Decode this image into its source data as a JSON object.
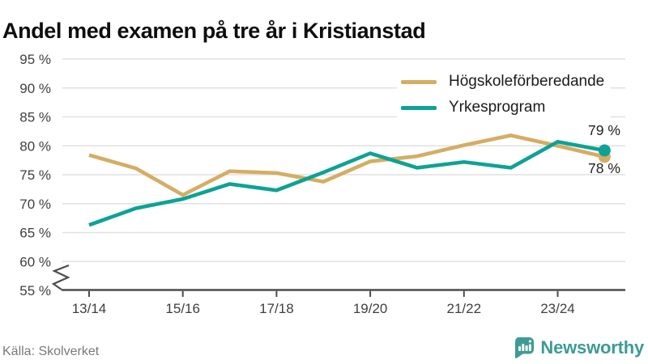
{
  "title": "Andel med examen på tre år i Kristianstad",
  "source": {
    "text": "Källa: Skolverket"
  },
  "branding": {
    "name": "Newsworthy",
    "color": "#3d9b94"
  },
  "chart_data": {
    "type": "line",
    "title": "Andel med examen på tre år i Kristianstad",
    "categories": [
      "13/14",
      "14/15",
      "15/16",
      "16/17",
      "17/18",
      "18/19",
      "19/20",
      "20/21",
      "21/22",
      "22/23",
      "23/24",
      "24/25"
    ],
    "x_tick_labels": [
      "13/14",
      "15/16",
      "17/18",
      "19/20",
      "21/22",
      "23/24"
    ],
    "y_ticks": [
      "95 %",
      "90 %",
      "85 %",
      "80 %",
      "75 %",
      "70 %",
      "65 %",
      "60 %",
      "55 %"
    ],
    "ylim": [
      55,
      95
    ],
    "axis_break": true,
    "grid": "horizontal",
    "legend_position": "top-right",
    "series": [
      {
        "name": "Högskoleförberedande",
        "color": "#d5ad62",
        "values": [
          78.4,
          76.1,
          71.5,
          75.6,
          75.3,
          73.8,
          77.3,
          78.2,
          80.1,
          81.8,
          80.0,
          78.1
        ],
        "end_label": "78 %"
      },
      {
        "name": "Yrkesprogram",
        "color": "#0ea296",
        "values": [
          66.3,
          69.2,
          70.8,
          73.4,
          72.3,
          75.4,
          78.7,
          76.2,
          77.2,
          76.2,
          80.7,
          79.2
        ],
        "end_label": "79 %"
      }
    ]
  }
}
